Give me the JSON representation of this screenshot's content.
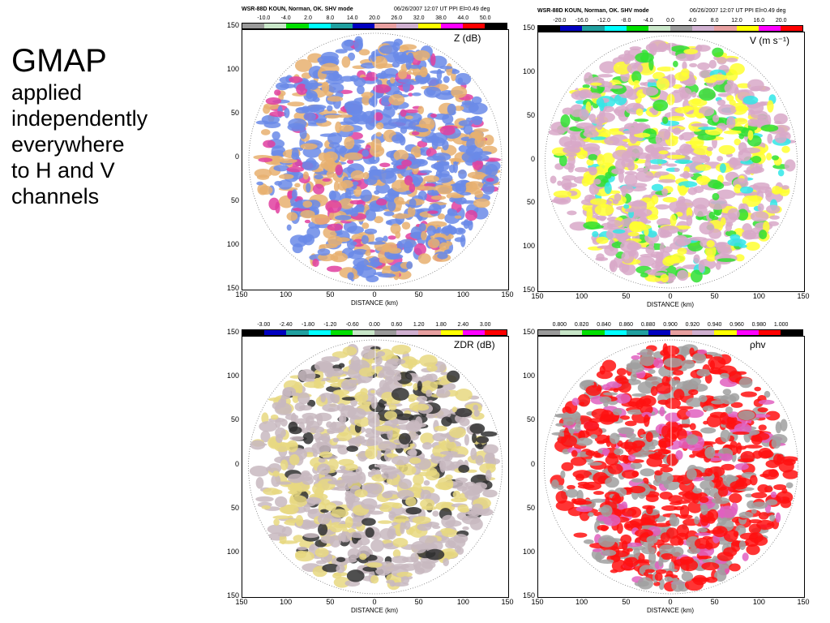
{
  "title": {
    "main": "GMAP",
    "lines": [
      "applied",
      "independently",
      "everywhere",
      "to H and V",
      "channels"
    ]
  },
  "panels": [
    {
      "header_left": "WSR-88D  KOUN, Norman, OK.  SHV mode",
      "header_right": "06/26/2007  12:07 UT  PPI  El=0.49 deg",
      "colorbar_values": [
        "-10.0",
        "-4.0",
        "2.0",
        "8.0",
        "14.0",
        "20.0",
        "26.0",
        "32.0",
        "38.0",
        "44.0",
        "50.0"
      ],
      "colorbar_colors": [
        "#9a9a9a",
        "#c8e6c8",
        "#00e000",
        "#00ffff",
        "#20a0a0",
        "#0000c0",
        "#e8a0a0",
        "#d0b0d0",
        "#ffff00",
        "#ff00ff",
        "#ff0000",
        "#000000"
      ],
      "var_label": "Z  (dB)",
      "y_ticks": [
        "150",
        "100",
        "50",
        "0",
        "50",
        "100",
        "150"
      ],
      "x_ticks": [
        "150",
        "100",
        "50",
        "0",
        "50",
        "100",
        "150"
      ],
      "x_axis_label": "DISTANCE (km)",
      "fill_main": "#6a8ae8",
      "fill_accent": "#e8b070",
      "fill_third": "#e040a0"
    },
    {
      "header_left": "WSR-88D  KOUN, Norman, OK.  SHV mode",
      "header_right": "06/26/2007  12:07 UT  PPI  El=0.49 deg",
      "colorbar_values": [
        "-20.0",
        "-16.0",
        "-12.0",
        "-8.0",
        "-4.0",
        "0.0",
        "4.0",
        "8.0",
        "12.0",
        "16.0",
        "20.0"
      ],
      "colorbar_colors": [
        "#000000",
        "#0000c0",
        "#20a0a0",
        "#00ffff",
        "#00e000",
        "#c8e6c8",
        "#9a9a9a",
        "#d0b0d0",
        "#e8a0a0",
        "#ffff00",
        "#ff00ff",
        "#ff0000"
      ],
      "var_label": "V (m s⁻¹)",
      "y_ticks": [
        "150",
        "100",
        "50",
        "0",
        "50",
        "100",
        "150"
      ],
      "x_ticks": [
        "150",
        "100",
        "50",
        "0",
        "50",
        "100",
        "150"
      ],
      "x_axis_label": "DISTANCE (km)",
      "fill_main": "#d8a8c8",
      "fill_accent": "#ffff30",
      "fill_third": "#30e030",
      "fill_fourth": "#30e8e8"
    },
    {
      "header_left": "",
      "header_right": "",
      "colorbar_values": [
        "-3.00",
        "-2.40",
        "-1.80",
        "-1.20",
        "-0.60",
        "0.00",
        "0.60",
        "1.20",
        "1.80",
        "2.40",
        "3.00"
      ],
      "colorbar_colors": [
        "#000000",
        "#0000c0",
        "#20a0a0",
        "#00ffff",
        "#00e000",
        "#c8e6c8",
        "#9a9a9a",
        "#d0b0d0",
        "#e8a0a0",
        "#ffff00",
        "#ff00ff",
        "#ff0000"
      ],
      "var_label": "ZDR (dB)",
      "y_ticks": [
        "150",
        "100",
        "50",
        "0",
        "50",
        "100",
        "150"
      ],
      "x_ticks": [
        "150",
        "100",
        "50",
        "0",
        "50",
        "100",
        "150"
      ],
      "x_axis_label": "DISTANCE (km)",
      "fill_main": "#c8b8c0",
      "fill_accent": "#e8d880",
      "fill_third": "#303030"
    },
    {
      "header_left": "",
      "header_right": "",
      "colorbar_values": [
        "0.800",
        "0.820",
        "0.840",
        "0.860",
        "0.880",
        "0.900",
        "0.920",
        "0.940",
        "0.960",
        "0.980",
        "1.000"
      ],
      "colorbar_colors": [
        "#9a9a9a",
        "#c8e6c8",
        "#00e000",
        "#00ffff",
        "#20a0a0",
        "#0000c0",
        "#e8a0a0",
        "#d0b0d0",
        "#ffff00",
        "#ff00ff",
        "#ff0000",
        "#000000"
      ],
      "var_label": "ρhv",
      "y_ticks": [
        "150",
        "100",
        "50",
        "0",
        "50",
        "100",
        "150"
      ],
      "x_ticks": [
        "150",
        "100",
        "50",
        "0",
        "50",
        "100",
        "150"
      ],
      "x_axis_label": "DISTANCE (km)",
      "fill_main": "#ff1010",
      "fill_accent": "#a0a0a0",
      "fill_third": "#e060c0"
    }
  ]
}
